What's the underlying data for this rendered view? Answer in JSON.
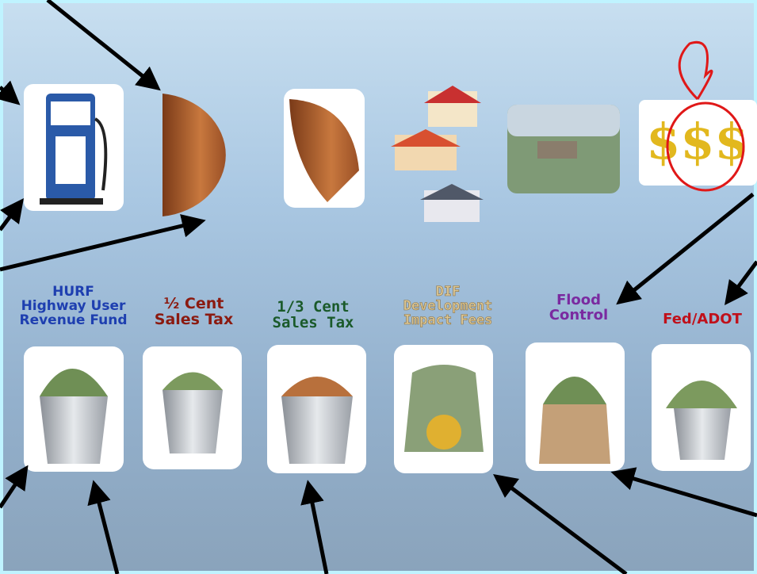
{
  "funds": [
    {
      "lines": [
        "HURF",
        "Highway User",
        "Revenue Fund"
      ]
    },
    {
      "lines": [
        "½ Cent",
        "Sales Tax"
      ]
    },
    {
      "lines": [
        "1/3 Cent",
        "Sales Tax"
      ]
    },
    {
      "lines": [
        "DIF",
        "Development",
        "Impact Fees"
      ]
    },
    {
      "lines": [
        "Flood",
        "Control"
      ]
    },
    {
      "lines": [
        "Fed/ADOT"
      ]
    }
  ]
}
